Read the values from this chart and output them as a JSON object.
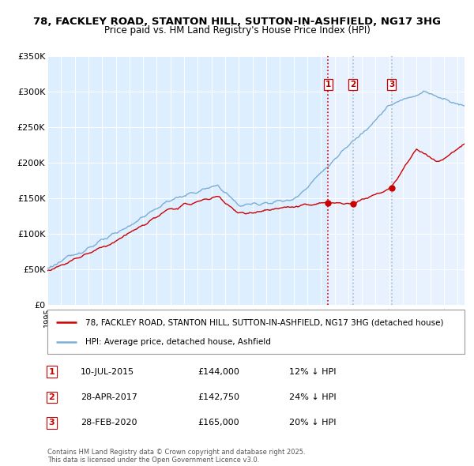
{
  "title_line1": "78, FACKLEY ROAD, STANTON HILL, SUTTON-IN-ASHFIELD, NG17 3HG",
  "title_line2": "Price paid vs. HM Land Registry's House Price Index (HPI)",
  "ylim": [
    0,
    350000
  ],
  "yticks": [
    0,
    50000,
    100000,
    150000,
    200000,
    250000,
    300000,
    350000
  ],
  "ytick_labels": [
    "£0",
    "£50K",
    "£100K",
    "£150K",
    "£200K",
    "£250K",
    "£300K",
    "£350K"
  ],
  "xmin": 1995,
  "xmax": 2025.5,
  "red_line_color": "#cc0000",
  "blue_line_color": "#7aadd4",
  "vline1_color": "#cc0000",
  "vline2_color": "#aabbcc",
  "vlines": [
    2015.53,
    2017.33,
    2020.17
  ],
  "vline_labels": [
    "1",
    "2",
    "3"
  ],
  "sale_dates": [
    "10-JUL-2015",
    "28-APR-2017",
    "28-FEB-2020"
  ],
  "sale_prices": [
    "£144,000",
    "£142,750",
    "£165,000"
  ],
  "sale_prices_val": [
    144000,
    142750,
    165000
  ],
  "sale_years": [
    2015.53,
    2017.33,
    2020.17
  ],
  "sale_hpi": [
    "12% ↓ HPI",
    "24% ↓ HPI",
    "20% ↓ HPI"
  ],
  "legend_line1": "78, FACKLEY ROAD, STANTON HILL, SUTTON-IN-ASHFIELD, NG17 3HG (detached house)",
  "legend_line2": "HPI: Average price, detached house, Ashfield",
  "footer1": "Contains HM Land Registry data © Crown copyright and database right 2025.",
  "footer2": "This data is licensed under the Open Government Licence v3.0.",
  "plot_bg_color": "#ddeeff",
  "plot_bg_right_color": "#e8f2ff",
  "white": "#ffffff"
}
